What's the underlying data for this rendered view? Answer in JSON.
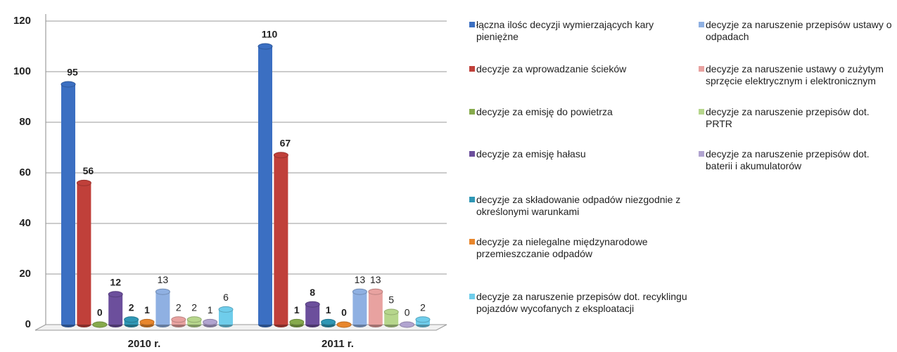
{
  "chart_data": {
    "type": "bar",
    "categories": [
      "2010 r.",
      "2011 r."
    ],
    "series": [
      {
        "name": "łączna ilośc decyzji wymierzających kary pieniężne",
        "color": "#3b6fc2",
        "values": [
          95,
          110
        ]
      },
      {
        "name": "decyzje za wprowadzanie ścieków",
        "color": "#c0403a",
        "values": [
          56,
          67
        ]
      },
      {
        "name": "decyzje za emisję do powietrza",
        "color": "#86aa4c",
        "values": [
          0,
          1
        ]
      },
      {
        "name": "decyzje za emisję hałasu",
        "color": "#6c4f9c",
        "values": [
          12,
          8
        ]
      },
      {
        "name": "decyzje za składowanie odpadów niezgodnie z określonymi warunkami",
        "color": "#2f97b5",
        "values": [
          2,
          1
        ]
      },
      {
        "name": "decyzje za nielegalne międzynarodowe przemieszczanie odpadów",
        "color": "#e8862c",
        "values": [
          1,
          0
        ]
      },
      {
        "name": "decyzje za naruszenie przepisów ustawy o odpadach",
        "color": "#8fb0e2",
        "values": [
          13,
          13
        ]
      },
      {
        "name": "decyzje za naruszenie ustawy o zużytym sprzęcie elektrycznym i elektronicznym",
        "color": "#e8a2a0",
        "values": [
          2,
          13
        ]
      },
      {
        "name": "decyzje za naruszenie przepisów dot. PRTR",
        "color": "#b6d68c",
        "values": [
          2,
          5
        ]
      },
      {
        "name": "decyzje za naruszenie przepisów dot. baterii i akumulatorów",
        "color": "#b1a4d0",
        "values": [
          1,
          0
        ]
      },
      {
        "name": "decyzje za naruszenie przepisów dot. recyklingu pojazdów wycofanych z eksploatacji",
        "color": "#6fcdeb",
        "values": [
          6,
          2
        ]
      }
    ],
    "ylim": [
      0,
      120
    ],
    "yticks": [
      0,
      20,
      40,
      60,
      80,
      100,
      120
    ],
    "grid": true
  }
}
